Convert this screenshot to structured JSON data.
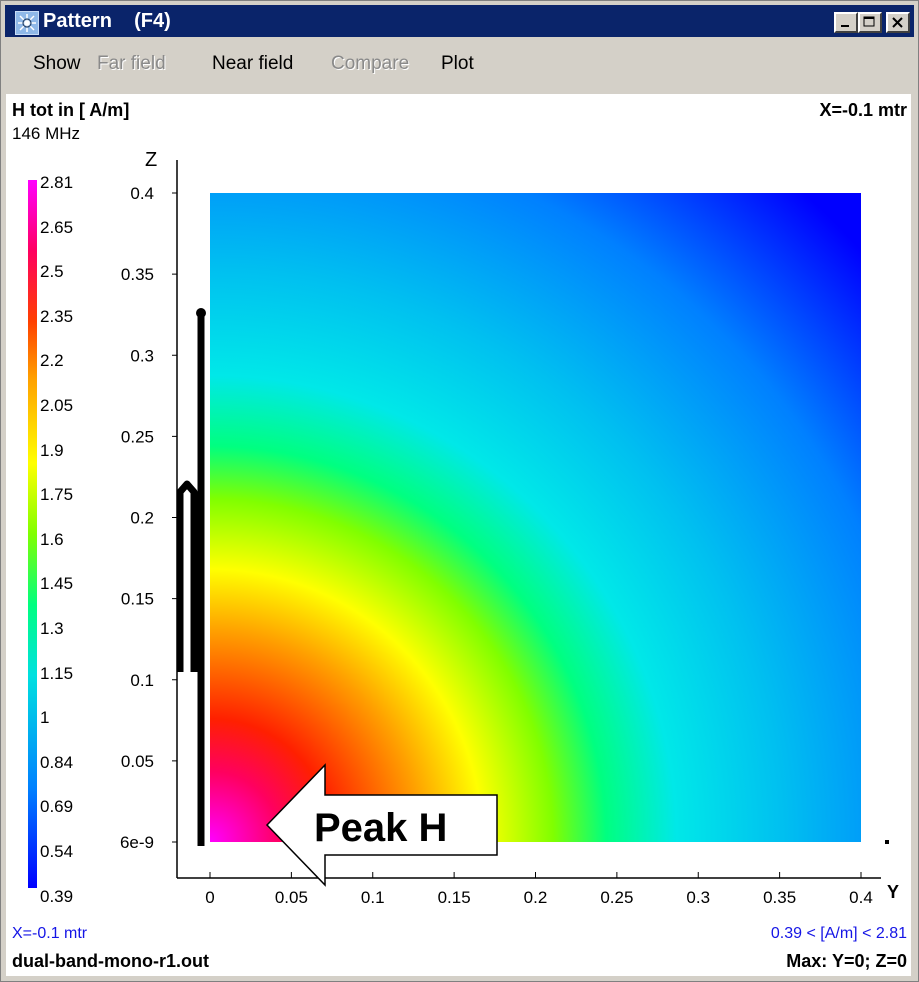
{
  "window": {
    "title": "Pattern    (F4)",
    "buttons": [
      "minimize",
      "maximize",
      "close"
    ]
  },
  "menu": {
    "items": [
      {
        "label": "Show",
        "enabled": true
      },
      {
        "label": "Far field",
        "enabled": false
      },
      {
        "label": "Near field",
        "enabled": true
      },
      {
        "label": "Compare",
        "enabled": false
      },
      {
        "label": "Plot",
        "enabled": true
      }
    ]
  },
  "header": {
    "quantity": "H tot in [ A/m]",
    "frequency": "146 MHz",
    "position": "X=-0.1 mtr"
  },
  "legend": {
    "labels": [
      "2.81",
      "2.65",
      "2.5",
      "2.35",
      "2.2",
      "2.05",
      "1.9",
      "1.75",
      "1.6",
      "1.45",
      "1.3",
      "1.15",
      "1",
      "0.84",
      "0.69",
      "0.54",
      "0.39"
    ]
  },
  "chart_data": {
    "type": "heatmap",
    "title": "",
    "xlabel": "Y",
    "ylabel": "Z",
    "x_ticks": [
      "0",
      "0.05",
      "0.1",
      "0.15",
      "0.2",
      "0.25",
      "0.3",
      "0.35",
      "0.4"
    ],
    "y_ticks": [
      "6e-9",
      "0.05",
      "0.1",
      "0.15",
      "0.2",
      "0.25",
      "0.3",
      "0.35",
      "0.4"
    ],
    "xlim": [
      0,
      0.4
    ],
    "ylim": [
      0,
      0.4
    ],
    "value_range": [
      0.39,
      2.81
    ],
    "unit": "A/m",
    "peak_location": {
      "y": 0,
      "z": 0
    },
    "annotation": "Peak H",
    "colormap": [
      "#0000ff",
      "#0080ff",
      "#00e0e0",
      "#00ff80",
      "#80ff00",
      "#ffff00",
      "#ffa000",
      "#ff4000",
      "#ff0060",
      "#ff00ff"
    ]
  },
  "footer": {
    "position": "X=-0.1 mtr",
    "range": "0.39 < [A/m] < 2.81",
    "filename": "dual-band-mono-r1.out",
    "max_location": "Max: Y=0; Z=0"
  }
}
